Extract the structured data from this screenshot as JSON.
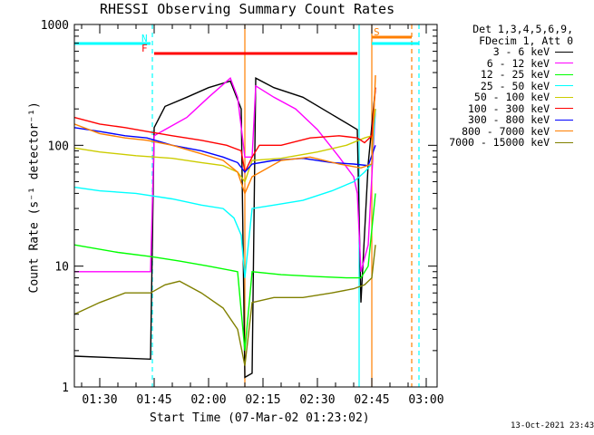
{
  "header": {
    "title": "RHESSI Observing Summary Count Rates",
    "timestamp": "13-Oct-2021 23:43"
  },
  "legend": {
    "line1": "Det 1,3,4,5,6,9,",
    "line2": "FDecim 1, Att 0",
    "entries": [
      {
        "label": "3 - 6 keV",
        "color": "#000000"
      },
      {
        "label": "6 - 12 keV",
        "color": "#ff00ff"
      },
      {
        "label": "12 - 25 keV",
        "color": "#00ff00"
      },
      {
        "label": "25 - 50 keV",
        "color": "#00ffff"
      },
      {
        "label": "50 - 100 keV",
        "color": "#cccc00"
      },
      {
        "label": "100 - 300 keV",
        "color": "#ff0000"
      },
      {
        "label": "300 - 800 keV",
        "color": "#0000ff"
      },
      {
        "label": "800 - 7000 keV",
        "color": "#ff7f00"
      },
      {
        "label": "7000 - 15000 keV",
        "color": "#808000"
      }
    ]
  },
  "markers": {
    "night": "N",
    "flare": "F",
    "saa": "S"
  },
  "chart_data": {
    "type": "line",
    "title": "RHESSI Observing Summary Count Rates",
    "xlabel": "Start Time (07-Mar-02 01:23:02)",
    "ylabel": "Count Rate (s⁻¹ detector⁻¹)",
    "yscale": "log",
    "ylim": [
      1,
      1000
    ],
    "xlim": [
      83,
      183
    ],
    "x_ticks": [
      {
        "x": 90,
        "label": "01:30"
      },
      {
        "x": 105,
        "label": "01:45"
      },
      {
        "x": 120,
        "label": "02:00"
      },
      {
        "x": 135,
        "label": "02:15"
      },
      {
        "x": 150,
        "label": "02:30"
      },
      {
        "x": 165,
        "label": "02:45"
      },
      {
        "x": 180,
        "label": "03:00"
      }
    ],
    "y_ticks": [
      {
        "y": 1,
        "label": "1"
      },
      {
        "y": 10,
        "label": "10"
      },
      {
        "y": 100,
        "label": "100"
      },
      {
        "y": 1000,
        "label": "1000"
      }
    ],
    "series": [
      {
        "name": "3 - 6 keV",
        "color": "#000000",
        "points": [
          [
            83,
            1.8
          ],
          [
            104,
            1.7
          ],
          [
            105,
            140
          ],
          [
            108,
            210
          ],
          [
            114,
            250
          ],
          [
            120,
            300
          ],
          [
            126,
            340
          ],
          [
            129,
            200
          ],
          [
            130,
            1.2
          ],
          [
            132,
            1.3
          ],
          [
            133,
            360
          ],
          [
            138,
            300
          ],
          [
            146,
            250
          ],
          [
            154,
            180
          ],
          [
            161,
            135
          ],
          [
            162,
            5
          ],
          [
            164,
            70
          ],
          [
            166,
            300
          ]
        ]
      },
      {
        "name": "6 - 12 keV",
        "color": "#ff00ff",
        "points": [
          [
            83,
            9
          ],
          [
            104,
            9
          ],
          [
            105,
            120
          ],
          [
            108,
            135
          ],
          [
            114,
            170
          ],
          [
            120,
            250
          ],
          [
            126,
            360
          ],
          [
            128,
            250
          ],
          [
            130,
            80
          ],
          [
            132,
            80
          ],
          [
            133,
            310
          ],
          [
            138,
            250
          ],
          [
            144,
            200
          ],
          [
            150,
            135
          ],
          [
            156,
            80
          ],
          [
            160,
            55
          ],
          [
            161,
            40
          ],
          [
            162,
            9
          ],
          [
            164,
            15
          ],
          [
            166,
            200
          ]
        ]
      },
      {
        "name": "12 - 25 keV",
        "color": "#00ff00",
        "points": [
          [
            83,
            15
          ],
          [
            95,
            13
          ],
          [
            104,
            12
          ],
          [
            112,
            11
          ],
          [
            120,
            10
          ],
          [
            128,
            9
          ],
          [
            130,
            2
          ],
          [
            132,
            9
          ],
          [
            140,
            8.5
          ],
          [
            150,
            8.2
          ],
          [
            158,
            8
          ],
          [
            162,
            8
          ],
          [
            164,
            10
          ],
          [
            166,
            40
          ]
        ]
      },
      {
        "name": "25 - 50 keV",
        "color": "#00ffff",
        "points": [
          [
            83,
            45
          ],
          [
            90,
            42
          ],
          [
            100,
            40
          ],
          [
            110,
            36
          ],
          [
            118,
            32
          ],
          [
            124,
            30
          ],
          [
            127,
            25
          ],
          [
            129,
            18
          ],
          [
            130,
            8
          ],
          [
            132,
            30
          ],
          [
            138,
            32
          ],
          [
            146,
            35
          ],
          [
            154,
            42
          ],
          [
            160,
            50
          ],
          [
            163,
            60
          ],
          [
            165,
            70
          ],
          [
            166,
            200
          ]
        ]
      },
      {
        "name": "50 - 100 keV",
        "color": "#cccc00",
        "points": [
          [
            83,
            95
          ],
          [
            90,
            88
          ],
          [
            100,
            82
          ],
          [
            110,
            78
          ],
          [
            118,
            72
          ],
          [
            124,
            68
          ],
          [
            128,
            60
          ],
          [
            130,
            50
          ],
          [
            132,
            75
          ],
          [
            140,
            78
          ],
          [
            150,
            88
          ],
          [
            158,
            100
          ],
          [
            163,
            115
          ],
          [
            165,
            120
          ],
          [
            166,
            200
          ]
        ]
      },
      {
        "name": "100 - 300 keV",
        "color": "#ff0000",
        "points": [
          [
            83,
            170
          ],
          [
            90,
            150
          ],
          [
            97,
            140
          ],
          [
            103,
            130
          ],
          [
            110,
            120
          ],
          [
            118,
            110
          ],
          [
            125,
            100
          ],
          [
            129,
            90
          ],
          [
            130,
            60
          ],
          [
            132,
            80
          ],
          [
            134,
            100
          ],
          [
            140,
            100
          ],
          [
            148,
            115
          ],
          [
            156,
            120
          ],
          [
            161,
            115
          ],
          [
            163,
            105
          ],
          [
            165,
            120
          ],
          [
            166,
            300
          ]
        ]
      },
      {
        "name": "300 - 800 keV",
        "color": "#0000ff",
        "points": [
          [
            83,
            140
          ],
          [
            90,
            130
          ],
          [
            97,
            120
          ],
          [
            103,
            115
          ],
          [
            110,
            100
          ],
          [
            118,
            90
          ],
          [
            124,
            80
          ],
          [
            128,
            72
          ],
          [
            130,
            60
          ],
          [
            132,
            70
          ],
          [
            138,
            75
          ],
          [
            146,
            78
          ],
          [
            154,
            72
          ],
          [
            160,
            70
          ],
          [
            164,
            68
          ],
          [
            166,
            100
          ]
        ]
      },
      {
        "name": "800 - 7000 keV",
        "color": "#ff7f00",
        "points": [
          [
            83,
            150
          ],
          [
            90,
            125
          ],
          [
            97,
            115
          ],
          [
            103,
            110
          ],
          [
            110,
            100
          ],
          [
            118,
            85
          ],
          [
            124,
            75
          ],
          [
            128,
            60
          ],
          [
            130,
            40
          ],
          [
            132,
            55
          ],
          [
            140,
            75
          ],
          [
            148,
            80
          ],
          [
            156,
            70
          ],
          [
            162,
            65
          ],
          [
            165,
            70
          ],
          [
            166,
            380
          ]
        ]
      },
      {
        "name": "7000 - 15000 keV",
        "color": "#808000",
        "points": [
          [
            83,
            4
          ],
          [
            90,
            5
          ],
          [
            97,
            6
          ],
          [
            104,
            6
          ],
          [
            108,
            7
          ],
          [
            112,
            7.5
          ],
          [
            118,
            6
          ],
          [
            124,
            4.5
          ],
          [
            128,
            3
          ],
          [
            130,
            1.5
          ],
          [
            132,
            5
          ],
          [
            138,
            5.5
          ],
          [
            146,
            5.5
          ],
          [
            154,
            6
          ],
          [
            160,
            6.5
          ],
          [
            163,
            7
          ],
          [
            165,
            8
          ],
          [
            166,
            15
          ]
        ]
      }
    ],
    "intervals": [
      {
        "label": "N",
        "color": "#00ffff",
        "start": 83,
        "end": 104,
        "level": "top"
      },
      {
        "label": "F",
        "color": "#ff0000",
        "start": 105,
        "end": 161,
        "level": "mid"
      },
      {
        "label": "S",
        "color": "#ff7f00",
        "start": 165,
        "end": 176,
        "level": "high"
      },
      {
        "label": "",
        "color": "#00ffff",
        "start": 165,
        "end": 178,
        "level": "top"
      }
    ],
    "vlines": [
      {
        "x": 104.5,
        "color": "#00ffff",
        "style": "dashed"
      },
      {
        "x": 130,
        "color": "#ff7f00",
        "style": "solid"
      },
      {
        "x": 161.5,
        "color": "#00ffff",
        "style": "solid"
      },
      {
        "x": 165,
        "color": "#ff7f00",
        "style": "solid"
      },
      {
        "x": 176,
        "color": "#ff7f00",
        "style": "dashed"
      },
      {
        "x": 178,
        "color": "#00ffff",
        "style": "dashed"
      }
    ]
  }
}
